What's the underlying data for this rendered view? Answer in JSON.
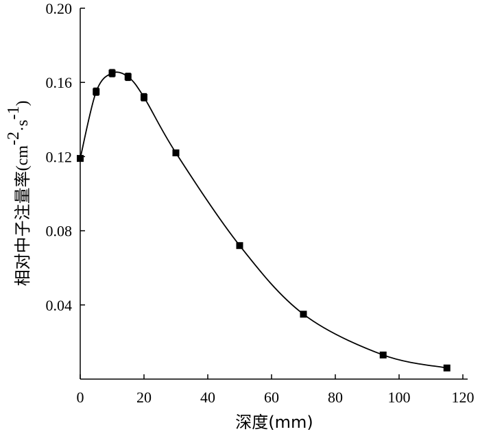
{
  "chart_data": {
    "type": "scatter",
    "title": "",
    "xlabel": "深度(mm)",
    "ylabel": "相对中子注量率(cm⁻²·s⁻¹)",
    "ylabel_main": "相对中子注量率",
    "ylabel_unit_open": "(cm",
    "ylabel_unit_exp1": "-2",
    "ylabel_unit_mid": "·s",
    "ylabel_unit_exp2": "-1",
    "ylabel_unit_close": ")",
    "xlim": [
      0,
      120
    ],
    "ylim": [
      0.0,
      0.2
    ],
    "x_ticks": [
      "0",
      "20",
      "40",
      "60",
      "80",
      "100",
      "120"
    ],
    "y_ticks": [
      "0.04",
      "0.08",
      "0.12",
      "0.16",
      "0.20"
    ],
    "grid": false,
    "series": [
      {
        "x": [
          0,
          5,
          10,
          15,
          20,
          30,
          50,
          70,
          95,
          115
        ],
        "values": [
          0.119,
          0.155,
          0.165,
          0.163,
          0.152,
          0.122,
          0.072,
          0.035,
          0.013,
          0.006
        ],
        "error": [
          0.0015,
          0.002,
          0.002,
          0.002,
          0.002,
          0.0015,
          0.001,
          0.001,
          0.0008,
          0.0005
        ]
      }
    ],
    "fit_curve": true,
    "marker_color": "#000000",
    "line_color": "#000000"
  }
}
